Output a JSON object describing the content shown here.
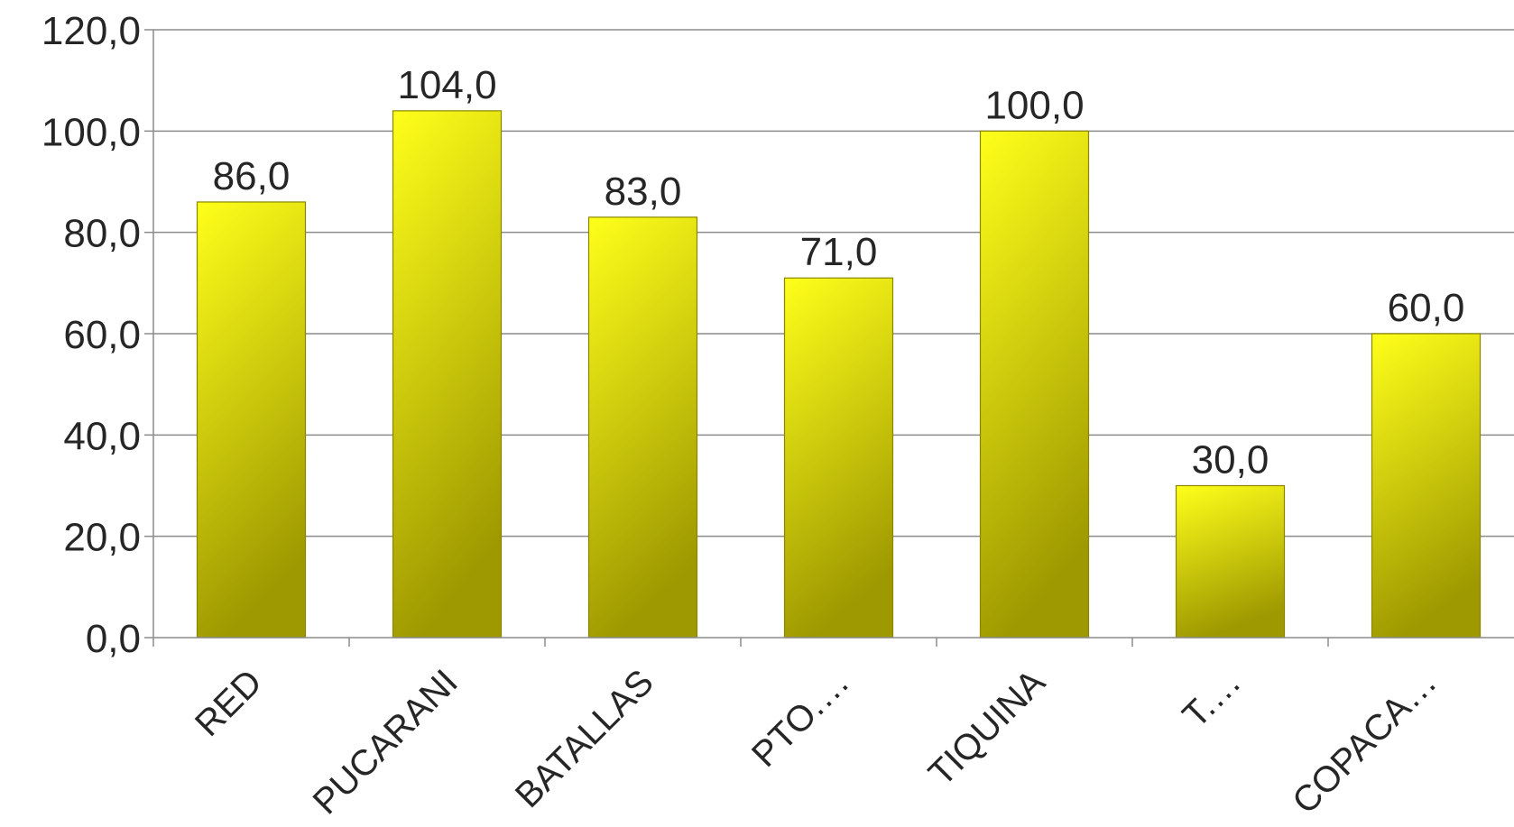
{
  "chart_data": {
    "type": "bar",
    "categories": [
      "RED",
      "PUCARANI",
      "BATALLAS",
      "PTO.…",
      "TIQUINA",
      "T.…",
      "COPACA…"
    ],
    "values": [
      86.0,
      104.0,
      83.0,
      71.0,
      100.0,
      30.0,
      60.0
    ],
    "value_labels": [
      "86,0",
      "104,0",
      "83,0",
      "71,0",
      "100,0",
      "30,0",
      "60,0"
    ],
    "y_ticks": [
      "0,0",
      "20,0",
      "40,0",
      "60,0",
      "80,0",
      "100,0",
      "120,0"
    ],
    "y_tick_values": [
      0,
      20,
      40,
      60,
      80,
      100,
      120
    ],
    "ylim": [
      0,
      120
    ],
    "title": "",
    "xlabel": "",
    "ylabel": "",
    "grid": true,
    "legend": "none",
    "colors": {
      "bar_top": "#ffff1a",
      "bar_bottom": "#9e9900",
      "bar_stroke": "#8a8600",
      "grid": "#8c8c8c",
      "axis": "#8c8c8c",
      "text": "#262626"
    }
  }
}
